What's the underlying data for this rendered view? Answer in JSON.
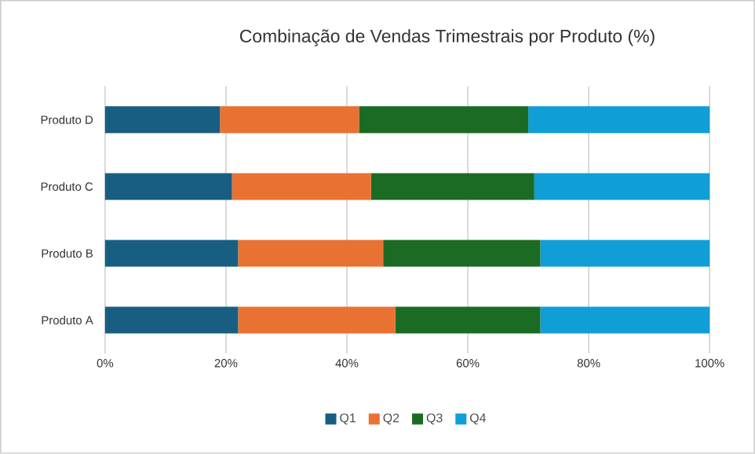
{
  "chart_data": {
    "type": "bar",
    "orientation": "horizontal",
    "stacked": true,
    "title": "Combinação de Vendas Trimestrais por Produto (%)",
    "categories": [
      "Produto D",
      "Produto C",
      "Produto B",
      "Produto A"
    ],
    "series": [
      {
        "name": "Q1",
        "color": "#175e82",
        "values": [
          19,
          21,
          22,
          22
        ]
      },
      {
        "name": "Q2",
        "color": "#e97132",
        "values": [
          23,
          23,
          24,
          26
        ]
      },
      {
        "name": "Q3",
        "color": "#1b6b24",
        "values": [
          28,
          27,
          26,
          24
        ]
      },
      {
        "name": "Q4",
        "color": "#0f9ed5",
        "values": [
          30,
          29,
          28,
          28
        ]
      }
    ],
    "xlim": [
      0,
      100
    ],
    "xticks": [
      {
        "value": 0,
        "label": "0%"
      },
      {
        "value": 20,
        "label": "20%"
      },
      {
        "value": 40,
        "label": "40%"
      },
      {
        "value": 60,
        "label": "60%"
      },
      {
        "value": 80,
        "label": "80%"
      },
      {
        "value": 100,
        "label": "100%"
      }
    ],
    "grid": "x",
    "legend": "bottom"
  }
}
